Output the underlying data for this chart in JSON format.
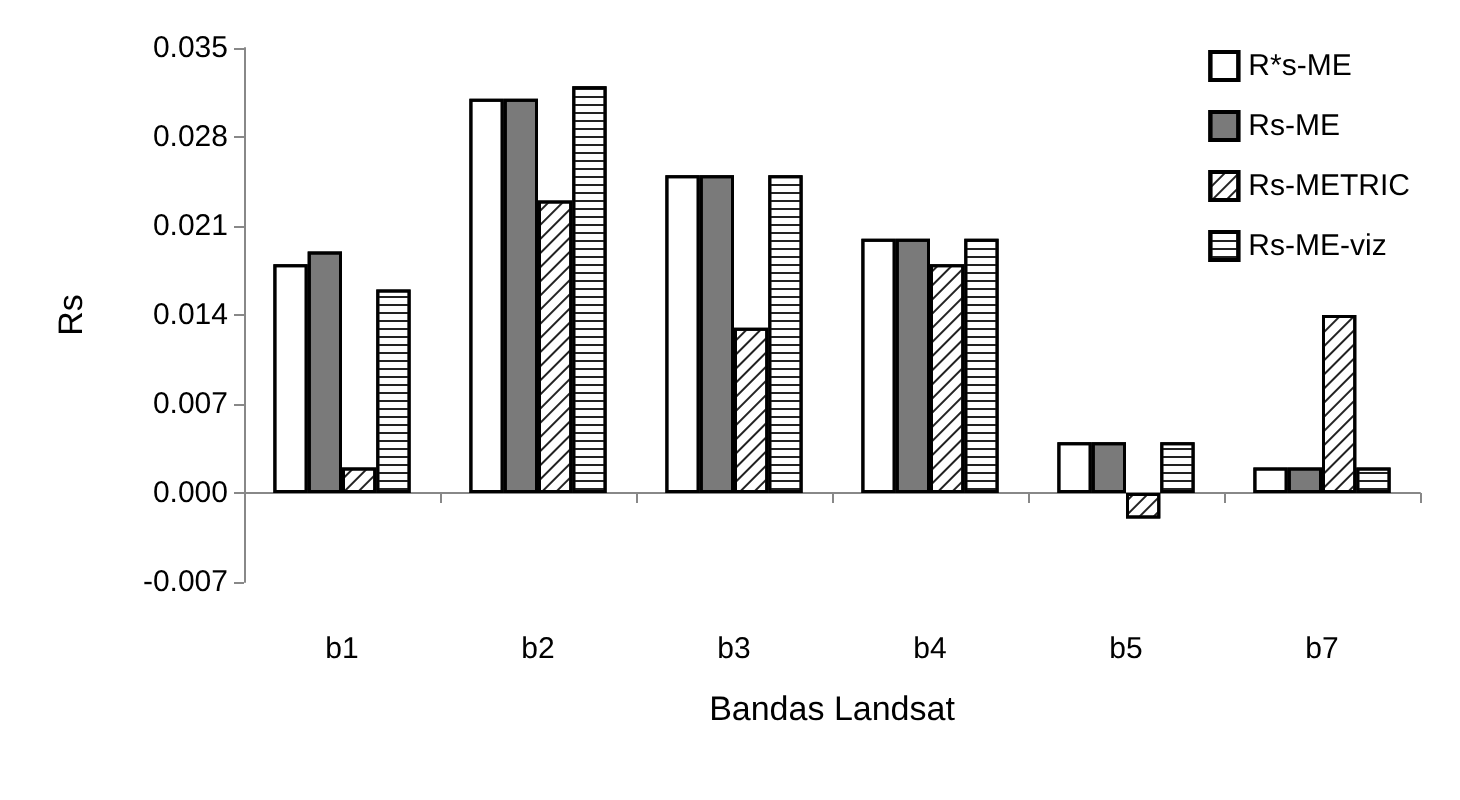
{
  "chart_data": {
    "type": "bar",
    "xlabel": "Bandas Landsat",
    "ylabel": "Rs",
    "categories": [
      "b1",
      "b2",
      "b3",
      "b4",
      "b5",
      "b7"
    ],
    "series": [
      {
        "name": "R*s-ME",
        "color": "#ffffff",
        "values": [
          0.018,
          0.031,
          0.025,
          0.02,
          0.004,
          0.002
        ]
      },
      {
        "name": "Rs-ME",
        "color": "#7a7a7a",
        "values": [
          0.019,
          0.031,
          0.025,
          0.02,
          0.004,
          0.002
        ]
      },
      {
        "name": "Rs-METRIC",
        "color": "#ffffff",
        "values": [
          0.002,
          0.023,
          0.013,
          0.018,
          -0.002,
          0.014
        ]
      },
      {
        "name": "Rs-ME-viz",
        "color": "#ffffff",
        "values": [
          0.016,
          0.032,
          0.025,
          0.02,
          0.004,
          0.002
        ]
      }
    ],
    "ylim": [
      -0.007,
      0.035
    ],
    "yticks": [
      -0.007,
      {
        "value": 0,
        "label": "0.000"
      },
      0.007,
      0.014,
      0.021,
      0.028,
      0.035
    ],
    "legend": "top right"
  }
}
